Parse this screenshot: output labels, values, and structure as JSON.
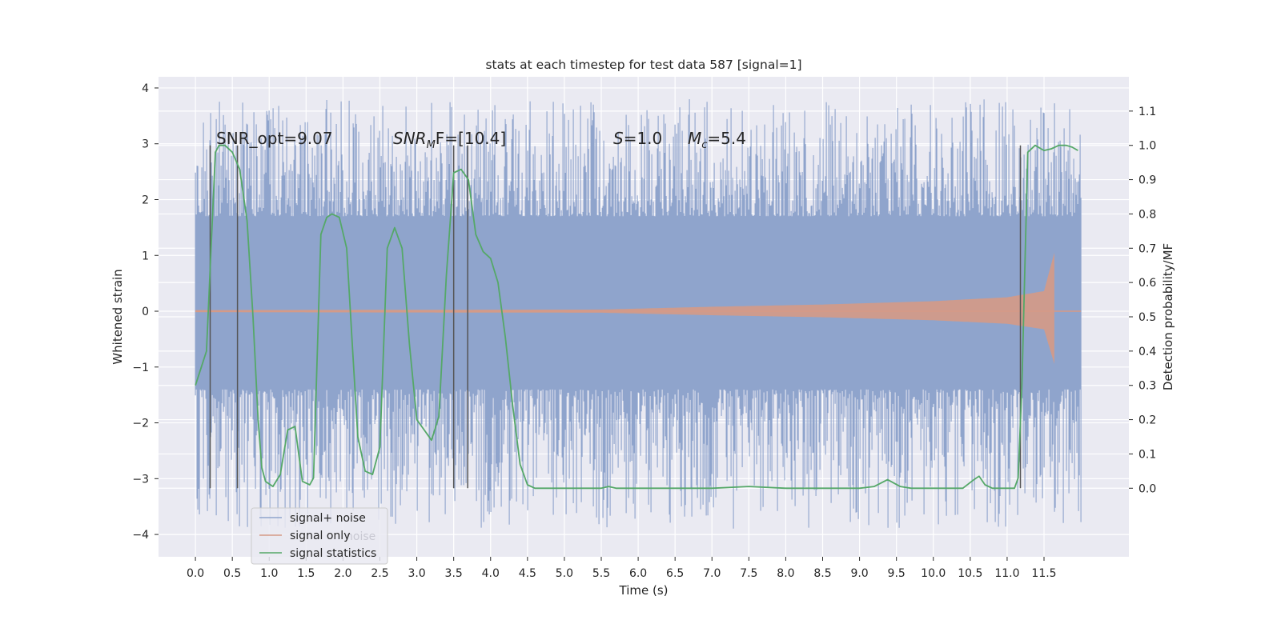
{
  "chart_data": {
    "type": "line",
    "title": "stats at each timestep for test data 587 [signal=1]",
    "xlabel": "Time (s)",
    "ylabel": "Whitened strain",
    "y2label": "Detection probability/MF",
    "xlim": [
      -0.5,
      12.65
    ],
    "ylim": [
      -4.4,
      4.2
    ],
    "y2lim": [
      -0.2,
      1.2
    ],
    "xticks": [
      "0.0",
      "0.5",
      "1.0",
      "1.5",
      "2.0",
      "2.5",
      "3.0",
      "3.5",
      "4.0",
      "4.5",
      "5.0",
      "5.5",
      "6.0",
      "6.5",
      "7.0",
      "7.5",
      "8.0",
      "8.5",
      "9.0",
      "9.5",
      "10.0",
      "10.5",
      "11.0",
      "11.5"
    ],
    "yticks": [
      "4",
      "3",
      "2",
      "1",
      "0",
      "−1",
      "−2",
      "−3",
      "−4"
    ],
    "y2ticks": [
      "1.1",
      "1.0",
      "0.9",
      "0.8",
      "0.7",
      "0.6",
      "0.5",
      "0.4",
      "0.3",
      "0.2",
      "0.1",
      "0.0"
    ],
    "grid": true,
    "legend": {
      "position": "lower-left",
      "entries": [
        "signal+ noise",
        "signal only",
        "signal statistics"
      ],
      "ghost_text": "noise"
    },
    "annotations": {
      "snr_opt": "SNR_opt=9.07",
      "snr_mf_prefix": "SNR",
      "snr_mf_sub": "M",
      "snr_mf_suffix": "F=[10.4]",
      "s_symbol": "S",
      "s_value": "=1.0",
      "mc_symbol": "M",
      "mc_sub": "c",
      "mc_value": "=5.4"
    },
    "series": [
      {
        "name": "signal+ noise",
        "color": "#8fa4cc",
        "axis": "left",
        "x_range": [
          0,
          12.0
        ],
        "band_core": [
          -1.4,
          1.7
        ],
        "spike_range": [
          -3.9,
          3.8
        ]
      },
      {
        "name": "signal only",
        "color": "#d59a86",
        "axis": "left",
        "x_range": [
          0,
          12.0
        ],
        "envelope": {
          "x": [
            0.0,
            5.5,
            7.0,
            8.5,
            10.0,
            11.0,
            11.5,
            11.65
          ],
          "amp": [
            0.02,
            0.03,
            0.08,
            0.12,
            0.18,
            0.25,
            0.36,
            1.1
          ]
        }
      },
      {
        "name": "signal statistics",
        "color": "#55a868",
        "axis": "right",
        "x": [
          0.0,
          0.15,
          0.27,
          0.32,
          0.4,
          0.5,
          0.6,
          0.7,
          0.78,
          0.85,
          0.9,
          0.95,
          1.05,
          1.15,
          1.25,
          1.35,
          1.45,
          1.55,
          1.6,
          1.7,
          1.78,
          1.85,
          1.95,
          2.05,
          2.12,
          2.2,
          2.3,
          2.4,
          2.5,
          2.6,
          2.7,
          2.8,
          2.9,
          3.0,
          3.1,
          3.2,
          3.3,
          3.4,
          3.5,
          3.6,
          3.7,
          3.8,
          3.9,
          4.0,
          4.1,
          4.2,
          4.3,
          4.4,
          4.5,
          4.6,
          5.0,
          5.5,
          5.6,
          5.7,
          6.0,
          6.5,
          7.0,
          7.5,
          8.0,
          8.5,
          9.0,
          9.2,
          9.38,
          9.55,
          9.7,
          10.0,
          10.4,
          10.55,
          10.62,
          10.7,
          10.8,
          11.0,
          11.1,
          11.15,
          11.2,
          11.28,
          11.38,
          11.5,
          11.6,
          11.7,
          11.8,
          11.88,
          11.96
        ],
        "y": [
          0.3,
          0.4,
          0.98,
          1.0,
          1.0,
          0.98,
          0.93,
          0.78,
          0.5,
          0.2,
          0.06,
          0.02,
          0.005,
          0.04,
          0.17,
          0.18,
          0.02,
          0.01,
          0.03,
          0.74,
          0.79,
          0.8,
          0.79,
          0.7,
          0.44,
          0.15,
          0.05,
          0.04,
          0.12,
          0.7,
          0.76,
          0.7,
          0.42,
          0.2,
          0.17,
          0.14,
          0.21,
          0.62,
          0.92,
          0.93,
          0.9,
          0.74,
          0.69,
          0.67,
          0.6,
          0.44,
          0.24,
          0.07,
          0.01,
          0.0,
          0.0,
          0.0,
          0.005,
          0.0,
          0.0,
          0.0,
          0.0,
          0.005,
          0.0,
          0.0,
          0.0,
          0.005,
          0.025,
          0.005,
          0.0,
          0.0,
          0.0,
          0.025,
          0.035,
          0.01,
          0.0,
          0.0,
          0.0,
          0.03,
          0.3,
          0.98,
          1.0,
          0.985,
          0.99,
          1.0,
          1.0,
          0.995,
          0.985
        ]
      }
    ],
    "vertical_lines": {
      "x": [
        0.2,
        0.57,
        3.5,
        3.69,
        11.18
      ],
      "y_from": 0.0,
      "y_to": 1.0,
      "color": "#555555"
    }
  }
}
